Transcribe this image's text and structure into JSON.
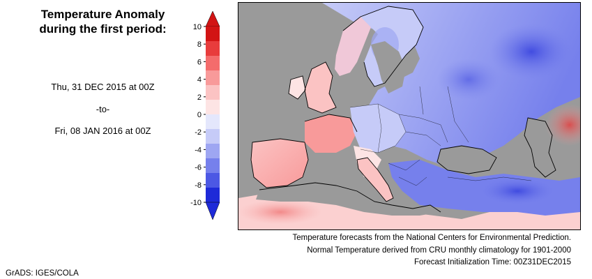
{
  "title": {
    "line1": "Temperature Anomaly",
    "line2": "during the first period:"
  },
  "period": {
    "start": "Thu, 31 DEC 2015 at 00Z",
    "separator": "-to-",
    "end": "Fri, 08 JAN 2016 at 00Z"
  },
  "legend": {
    "ticks": [
      "10",
      "8",
      "6",
      "4",
      "2",
      "0",
      "-2",
      "-4",
      "-6",
      "-8",
      "-10"
    ],
    "warm_colors": [
      "#d21414",
      "#e83c3c",
      "#f46c6c",
      "#f89a9a",
      "#fbc3c3",
      "#fde4e4"
    ],
    "cool_colors": [
      "#e4e7fc",
      "#c6cbf8",
      "#9ea6f2",
      "#7680ec",
      "#4c58e4",
      "#1e2ad8"
    ],
    "max_color": "#d21414",
    "min_color": "#1e2ad8"
  },
  "map": {
    "land_mask_color": "#9a9a9a",
    "region": "Europe"
  },
  "credits": {
    "line1": "Temperature forecasts from the National Centers for Environmental Prediction.",
    "line2": "Normal Temperature derived from CRU monthly climatology for 1901-2000",
    "line3": "Forecast Initialization Time: 00Z31DEC2015"
  },
  "footer": {
    "software": "GrADS: IGES/COLA"
  }
}
